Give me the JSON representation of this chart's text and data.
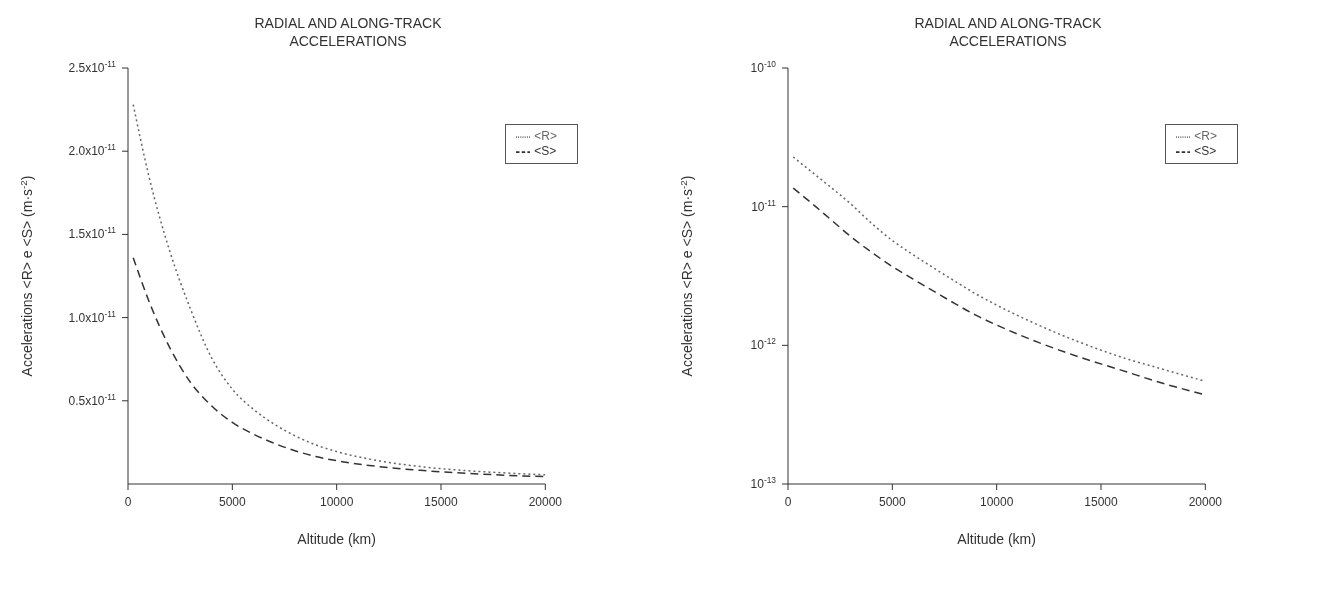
{
  "chart_data": [
    {
      "type": "line",
      "title": "RADIAL AND ALONG-TRACK ACCELERATIONS",
      "xlabel": "Altitude  (km)",
      "ylabel": "Accelerations <R> e <S>  (m·s$^{-2}$)",
      "x": [
        250,
        1000,
        2000,
        3000,
        4000,
        5000,
        6000,
        7000,
        8000,
        9000,
        10000,
        12000,
        14000,
        16000,
        18000,
        20000
      ],
      "series": [
        {
          "name": "<R>",
          "color": "#666666",
          "line_style": "dotted",
          "values": [
            2.28e-11,
            1.85e-11,
            1.4e-11,
            1.05e-11,
            7.6e-12,
            5.7e-12,
            4.5e-12,
            3.6e-12,
            2.9e-12,
            2.35e-12,
            1.95e-12,
            1.4e-12,
            1.05e-12,
            8.2e-13,
            6.7e-13,
            5.5e-13
          ]
        },
        {
          "name": "<S>",
          "color": "#333333",
          "line_style": "dashed",
          "values": [
            1.36e-11,
            1.1e-11,
            8.2e-12,
            6.1e-12,
            4.7e-12,
            3.7e-12,
            3e-12,
            2.45e-12,
            2e-12,
            1.65e-12,
            1.4e-12,
            1.05e-12,
            8.2e-13,
            6.6e-13,
            5.3e-13,
            4.4e-13
          ]
        }
      ],
      "xlim": [
        0,
        20000
      ],
      "xticks": [
        0,
        5000,
        10000,
        15000,
        20000
      ],
      "ylim": [
        0,
        2.5e-11
      ],
      "yticks": [
        {
          "value": 5e-12,
          "label": "0.5x10$^{-11}$"
        },
        {
          "value": 1e-11,
          "label": "1.0x10$^{-11}$"
        },
        {
          "value": 1.5e-11,
          "label": "1.5x10$^{-11}$"
        },
        {
          "value": 2e-11,
          "label": "2.0x10$^{-11}$"
        },
        {
          "value": 2.5e-11,
          "label": "2.5x10$^{-11}$"
        }
      ],
      "grid": false,
      "legend": "top right"
    },
    {
      "type": "line",
      "title": "RADIAL AND ALONG-TRACK ACCELERATIONS",
      "xlabel": "Altitude  (km)",
      "ylabel": "Accelerations <R> e <S>  (m·s$^{-2}$)",
      "x": [
        250,
        1000,
        2000,
        3000,
        4000,
        5000,
        6000,
        7000,
        8000,
        9000,
        10000,
        12000,
        14000,
        16000,
        18000,
        20000
      ],
      "series": [
        {
          "name": "<R>",
          "color": "#666666",
          "line_style": "dotted",
          "values": [
            2.28e-11,
            1.85e-11,
            1.4e-11,
            1.05e-11,
            7.6e-12,
            5.7e-12,
            4.5e-12,
            3.6e-12,
            2.9e-12,
            2.35e-12,
            1.95e-12,
            1.4e-12,
            1.05e-12,
            8.2e-13,
            6.7e-13,
            5.5e-13
          ]
        },
        {
          "name": "<S>",
          "color": "#333333",
          "line_style": "dashed",
          "values": [
            1.36e-11,
            1.1e-11,
            8.2e-12,
            6.1e-12,
            4.7e-12,
            3.7e-12,
            3e-12,
            2.45e-12,
            2e-12,
            1.65e-12,
            1.4e-12,
            1.05e-12,
            8.2e-13,
            6.6e-13,
            5.3e-13,
            4.4e-13
          ]
        }
      ],
      "xlim": [
        0,
        20000
      ],
      "xticks": [
        0,
        5000,
        10000,
        15000,
        20000
      ],
      "ylim": [
        1e-13,
        1e-10
      ],
      "yticks": [
        {
          "value": 1e-13,
          "label": "10$^{-13}$"
        },
        {
          "value": 1e-12,
          "label": "10$^{-12}$"
        },
        {
          "value": 1e-11,
          "label": "10$^{-11}$"
        },
        {
          "value": 1e-10,
          "label": "10$^{-10}$"
        }
      ],
      "log": "y",
      "grid": false,
      "legend": "top right"
    }
  ]
}
